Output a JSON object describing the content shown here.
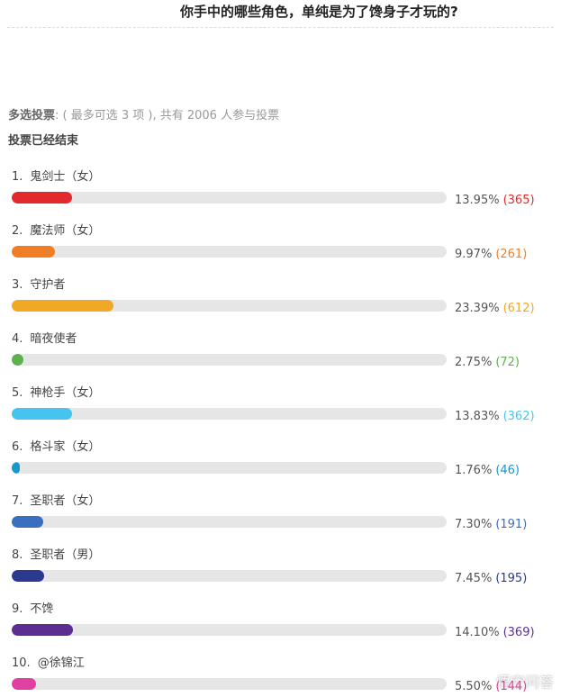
{
  "header": {
    "title": "你手中的哪些角色，单纯是为了馋身子才玩的?"
  },
  "poll": {
    "type_label": "多选投票",
    "info": ": ( 最多可选 3 项 ), 共有 2006 人参与投票",
    "status": "投票已经结束",
    "options": [
      {
        "index": "1.",
        "label": "鬼剑士（女）",
        "percent": 13.95,
        "percent_label": "13.95%",
        "votes_label": "(365)",
        "color": "#e2292b"
      },
      {
        "index": "2.",
        "label": "魔法师（女）",
        "percent": 9.97,
        "percent_label": "9.97%",
        "votes_label": "(261)",
        "color": "#f07e26"
      },
      {
        "index": "3.",
        "label": "守护者",
        "percent": 23.39,
        "percent_label": "23.39%",
        "votes_label": "(612)",
        "color": "#f0a826"
      },
      {
        "index": "4.",
        "label": "暗夜使者",
        "percent": 2.75,
        "percent_label": "2.75%",
        "votes_label": "(72)",
        "color": "#5cb14a"
      },
      {
        "index": "5.",
        "label": "神枪手（女）",
        "percent": 13.83,
        "percent_label": "13.83%",
        "votes_label": "(362)",
        "color": "#46c4ef"
      },
      {
        "index": "6.",
        "label": "格斗家（女）",
        "percent": 1.76,
        "percent_label": "1.76%",
        "votes_label": "(46)",
        "color": "#1a96c9"
      },
      {
        "index": "7.",
        "label": "圣职者（女）",
        "percent": 7.3,
        "percent_label": "7.30%",
        "votes_label": "(191)",
        "color": "#3a6fbf"
      },
      {
        "index": "8.",
        "label": "圣职者（男）",
        "percent": 7.45,
        "percent_label": "7.45%",
        "votes_label": "(195)",
        "color": "#2b3990"
      },
      {
        "index": "9.",
        "label": "不馋",
        "percent": 14.1,
        "percent_label": "14.10%",
        "votes_label": "(369)",
        "color": "#5c2e91"
      },
      {
        "index": "10.",
        "label": "@徐锦江",
        "percent": 5.5,
        "percent_label": "5.50%",
        "votes_label": "(144)",
        "color": "#e0409f"
      }
    ]
  },
  "watermark": "悟空问答"
}
